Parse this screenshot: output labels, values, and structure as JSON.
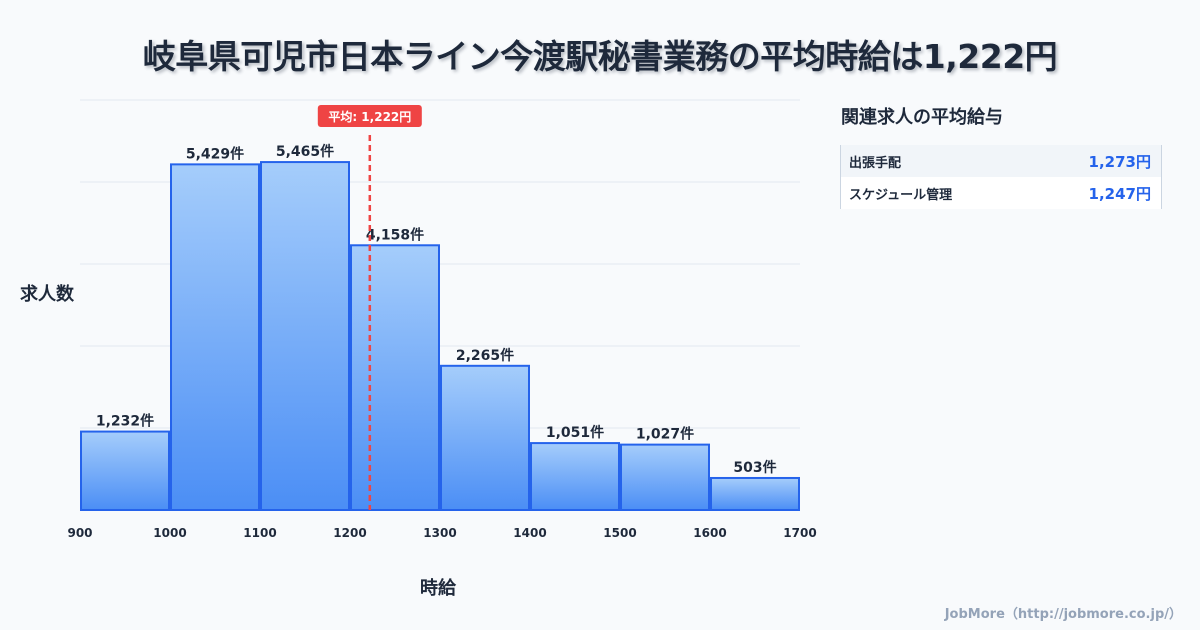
{
  "title": "岐阜県可児市日本ライン今渡駅秘書業務の平均時給は1,222円",
  "chart_data": {
    "type": "bar",
    "title": "岐阜県可児市日本ライン今渡駅秘書業務の平均時給は1,222円",
    "xlabel": "時給",
    "ylabel": "求人数",
    "x_ticks": [
      "900",
      "1000",
      "1100",
      "1200",
      "1300",
      "1400",
      "1500",
      "1600",
      "1700"
    ],
    "bins": [
      [
        900,
        1000
      ],
      [
        1000,
        1100
      ],
      [
        1100,
        1200
      ],
      [
        1200,
        1300
      ],
      [
        1300,
        1400
      ],
      [
        1400,
        1500
      ],
      [
        1500,
        1600
      ],
      [
        1600,
        1700
      ]
    ],
    "values": [
      1232,
      5429,
      5465,
      4158,
      2265,
      1051,
      1027,
      503
    ],
    "value_labels": [
      "1,232件",
      "5,429件",
      "5,465件",
      "4,158件",
      "2,265件",
      "1,051件",
      "1,027件",
      "503件"
    ],
    "xlim": [
      900,
      1700
    ],
    "ylim": [
      0,
      6440
    ],
    "average": 1222,
    "average_label": "平均: 1,222円",
    "grid": true
  },
  "colors": {
    "bar_top": "#a5cdfb",
    "bar_bottom": "#4b8ef5",
    "bar_border": "#2563eb",
    "avg": "#ef4444"
  },
  "side": {
    "title": "関連求人の平均給与",
    "items": [
      {
        "label": "出張手配",
        "value": "1,273円"
      },
      {
        "label": "スケジュール管理",
        "value": "1,247円"
      }
    ]
  },
  "footer": "JobMore（http://jobmore.co.jp/）"
}
